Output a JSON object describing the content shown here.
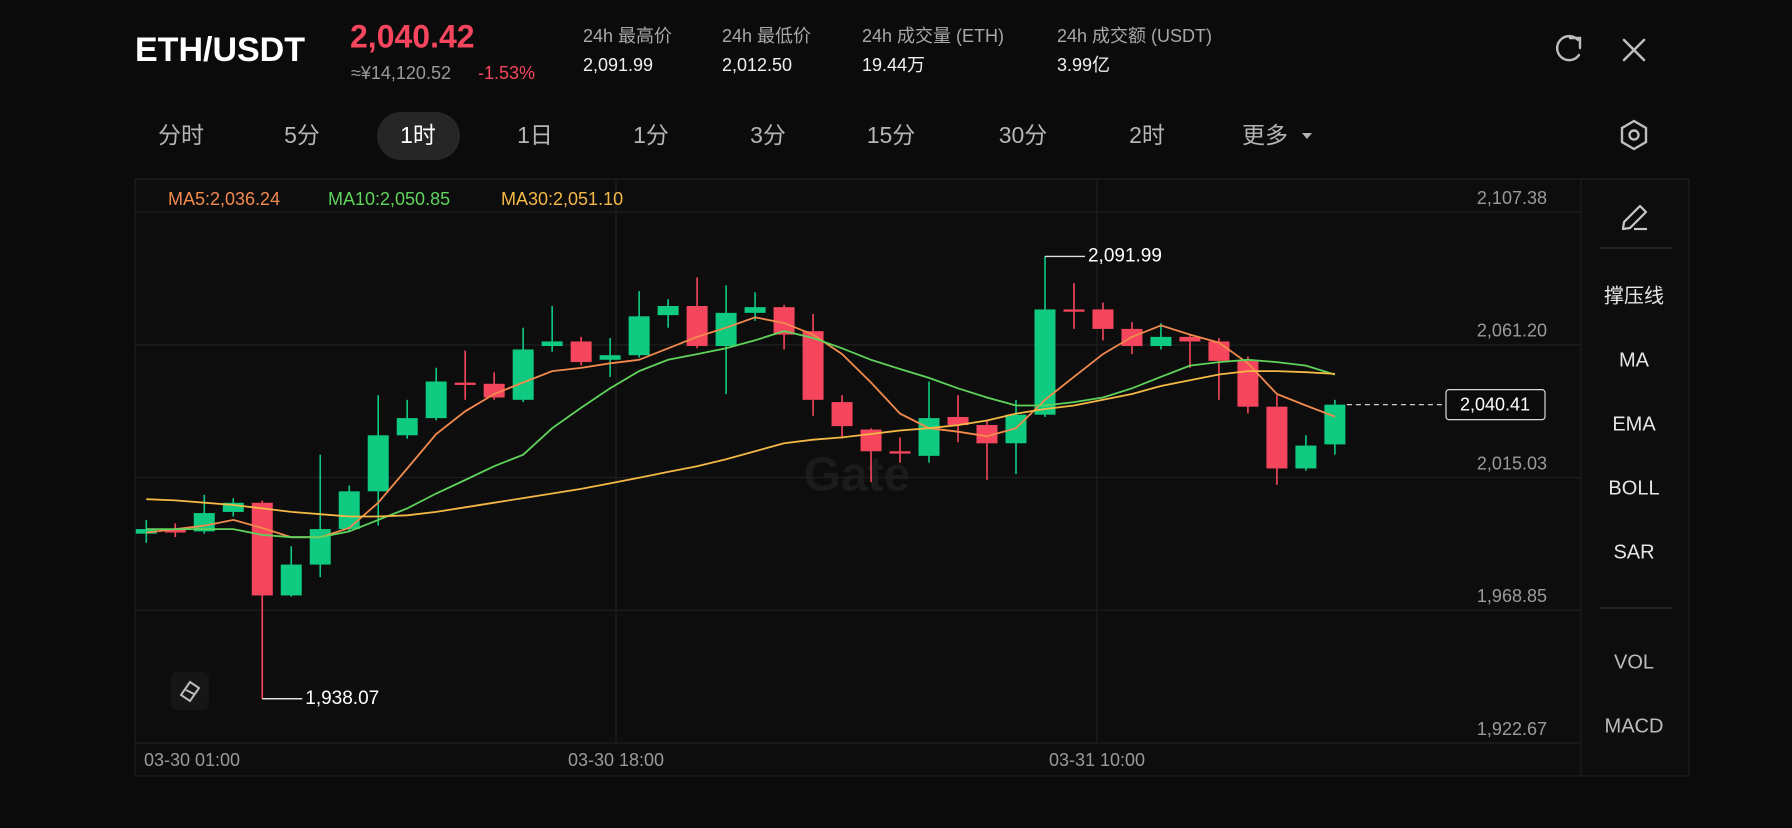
{
  "header": {
    "pair": "ETH/USDT",
    "price": "2,040.42",
    "price_cny": "≈¥14,120.52",
    "change": "-1.53%",
    "stats": [
      {
        "label": "24h 最高价",
        "value": "2,091.99"
      },
      {
        "label": "24h 最低价",
        "value": "2,012.50"
      },
      {
        "label": "24h 成交量 (ETH)",
        "value": "19.44万"
      },
      {
        "label": "24h 成交额 (USDT)",
        "value": "3.99亿"
      }
    ]
  },
  "tabs": {
    "items": [
      "分时",
      "5分",
      "1时",
      "1日",
      "1分",
      "3分",
      "15分",
      "30分",
      "2时",
      "更多"
    ],
    "active": 2
  },
  "tools": [
    "撑压线",
    "MA",
    "EMA",
    "BOLL",
    "SAR",
    "VOL",
    "MACD"
  ],
  "chart_data": {
    "type": "candlestick",
    "watermark": "Gate",
    "x_labels": [
      "03-30 01:00",
      "03-30 18:00",
      "03-31 10:00"
    ],
    "ylim": [
      1922.67,
      2118.93
    ],
    "yticks": [
      {
        "value": 1922.67,
        "label": "1,922.67"
      },
      {
        "value": 1968.85,
        "label": "1,968.85"
      },
      {
        "value": 2015.03,
        "label": "2,015.03"
      },
      {
        "value": 2061.2,
        "label": "2,061.20"
      },
      {
        "value": 2107.38,
        "label": "2,107.38"
      }
    ],
    "grid": true,
    "up_color": "#0ecb81",
    "down_color": "#f6465d",
    "candles": {
      "open": [
        1995.51,
        1997.11,
        1996.31,
        2003.08,
        2006.26,
        1974.02,
        1984.76,
        1997.11,
        2010.24,
        2029.75,
        2035.72,
        2048.06,
        2047.67,
        2042.09,
        2060.8,
        2062.4,
        2056.03,
        2057.62,
        2071.55,
        2074.74,
        2060.8,
        2072.35,
        2074.34,
        2065.98,
        2041.3,
        2031.74,
        2024.18,
        2022.59,
        2036.12,
        2033.33,
        2026.96,
        2036.92,
        2073.54,
        2073.54,
        2066.77,
        2060.8,
        2063.99,
        2062.4,
        2055.63,
        2039.7,
        2018.21,
        2026.57
      ],
      "high": [
        2000.29,
        1999.1,
        2009.05,
        2007.86,
        2007.06,
        1991.14,
        2022.98,
        2012.23,
        2043.68,
        2042.09,
        2053.24,
        2059.21,
        2051.65,
        2067.17,
        2074.74,
        2063.99,
        2063.59,
        2079.91,
        2077.13,
        2084.69,
        2081.9,
        2079.51,
        2075.13,
        2071.95,
        2043.68,
        2032.14,
        2028.96,
        2048.46,
        2043.68,
        2034.93,
        2042.09,
        2091.99,
        2082.7,
        2075.93,
        2069.16,
        2068.76,
        2064.78,
        2063.59,
        2057.22,
        2043.68,
        2029.75,
        2042.09
      ],
      "low": [
        1992.33,
        1994.32,
        1995.51,
        2001.49,
        1938.07,
        1973.62,
        1980.39,
        1996.31,
        1998.3,
        2028.56,
        2034.93,
        2042.09,
        2042.09,
        2041.3,
        2058.81,
        2054.04,
        2050.05,
        2056.82,
        2067.17,
        2060.01,
        2044.08,
        2069.56,
        2059.61,
        2036.52,
        2028.56,
        2013.43,
        2020.2,
        2020.2,
        2027.36,
        2014.23,
        2016.22,
        2036.12,
        2066.77,
        2062.79,
        2058.02,
        2059.61,
        2053.24,
        2042.09,
        2037.32,
        2012.5,
        2017.41,
        2022.98
      ],
      "close": [
        1997.11,
        1995.91,
        2002.68,
        2006.26,
        1974.02,
        1984.76,
        1997.11,
        2010.24,
        2029.75,
        2035.72,
        2048.46,
        2047.27,
        2042.89,
        2059.61,
        2062.4,
        2055.23,
        2057.62,
        2071.15,
        2074.74,
        2060.8,
        2072.35,
        2074.34,
        2064.78,
        2042.09,
        2032.94,
        2024.18,
        2023.38,
        2035.72,
        2033.33,
        2026.96,
        2036.92,
        2073.54,
        2072.75,
        2066.77,
        2060.8,
        2063.99,
        2062.4,
        2055.63,
        2039.7,
        2018.21,
        2026.17,
        2040.41
      ]
    },
    "series": [
      {
        "name": "MA5:2,036.24",
        "color": "#f28a4e",
        "values": [
          1995.9,
          1997.1,
          1998.3,
          2000.3,
          1997.5,
          1994.3,
          1994.3,
          1997.5,
          2006.3,
          2018.2,
          2030.2,
          2038.1,
          2044.1,
          2048.1,
          2052.1,
          2053.2,
          2054.8,
          2056.0,
          2060.0,
          2064.0,
          2067.2,
          2070.8,
          2068.8,
          2064.8,
          2058.0,
          2048.1,
          2037.3,
          2032.2,
          2031.0,
          2029.4,
          2032.2,
          2042.1,
          2050.1,
          2058.0,
          2064.0,
          2068.0,
          2064.8,
          2062.0,
          2054.8,
          2044.1,
          2040.1,
          2036.24
        ]
      },
      {
        "name": "MA10:2,050.85",
        "color": "#5fd35b",
        "values": [
          1997.1,
          1997.1,
          1997.1,
          1997.1,
          1995.1,
          1994.3,
          1994.3,
          1996.3,
          2000.3,
          2004.3,
          2009.5,
          2014.2,
          2019.0,
          2023.0,
          2032.2,
          2039.3,
          2046.1,
          2052.1,
          2056.0,
          2058.0,
          2060.0,
          2062.8,
          2066.0,
          2063.6,
          2060.0,
          2056.0,
          2052.8,
          2049.7,
          2046.1,
          2042.9,
          2040.1,
          2040.1,
          2041.3,
          2042.9,
          2046.1,
          2050.1,
          2054.0,
          2055.2,
          2056.0,
          2055.2,
          2054.0,
          2050.85
        ]
      },
      {
        "name": "MA30:2,051.10",
        "color": "#f4b846",
        "values": [
          2007.5,
          2007.1,
          2006.3,
          2005.5,
          2004.3,
          2003.1,
          2002.3,
          2001.5,
          2001.5,
          2001.9,
          2003.1,
          2004.7,
          2006.3,
          2007.9,
          2009.5,
          2011.1,
          2013.0,
          2015.0,
          2017.0,
          2019.0,
          2021.4,
          2024.2,
          2027.0,
          2028.2,
          2029.0,
          2030.2,
          2031.4,
          2032.2,
          2033.3,
          2034.9,
          2037.3,
          2038.9,
          2040.1,
          2042.1,
          2044.1,
          2046.9,
          2048.9,
          2050.9,
          2052.1,
          2052.1,
          2051.7,
          2051.1
        ]
      }
    ],
    "annotations": [
      {
        "label": "2,091.99",
        "value": 2091.99
      },
      {
        "label": "1,938.07",
        "value": 1938.07
      }
    ],
    "last_price": {
      "label": "2,040.41",
      "value": 2040.41
    }
  }
}
